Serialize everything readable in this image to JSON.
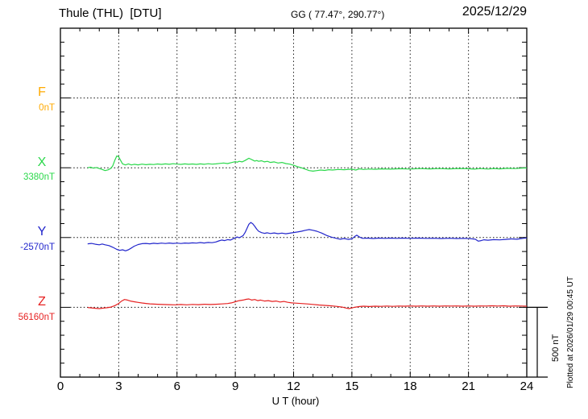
{
  "header": {
    "title": "Thule (THL)  [DTU]",
    "station_coords": "GG ( 77.47°, 290.77°)",
    "date": "2025/12/29"
  },
  "x_axis": {
    "label": "U T (hour)",
    "tick_labels": [
      "0",
      "3",
      "6",
      "9",
      "12",
      "15",
      "18",
      "21",
      "24"
    ]
  },
  "scale_bar": {
    "label": "500 nT",
    "nT": 500
  },
  "watermark": "Plotted at 2026/01/29 00:45 UT",
  "channels": [
    {
      "id": "F",
      "name": "F",
      "value": "0nT",
      "color": "#FFAA00"
    },
    {
      "id": "X",
      "name": "X",
      "value": "3380nT",
      "color": "#2BD84B"
    },
    {
      "id": "Y",
      "name": "Y",
      "value": "-2570nT",
      "color": "#2226CC"
    },
    {
      "id": "Z",
      "name": "Z",
      "value": "56160nT",
      "color": "#E62222"
    }
  ],
  "chart_data": {
    "type": "line",
    "title": "Thule (THL) [DTU] magnetogram 2025/12/29",
    "xlabel": "U T (hour)",
    "xlim": [
      0,
      24
    ],
    "x_tick_step_hours": 1,
    "x_grid_hours": [
      3,
      6,
      9,
      12,
      15,
      18,
      21
    ],
    "grid": "dotted",
    "scale_nT_per_5_divisions": 500,
    "series": [
      {
        "name": "F",
        "baseline_value": "0nT",
        "color": "#FFAA00",
        "points": []
      },
      {
        "name": "X",
        "baseline_value": "3380nT",
        "color": "#2BD84B",
        "points": [
          [
            1.4,
            0
          ],
          [
            1.55,
            4
          ],
          [
            1.7,
            -3
          ],
          [
            1.85,
            2
          ],
          [
            2.0,
            -6
          ],
          [
            2.15,
            -12
          ],
          [
            2.3,
            -20
          ],
          [
            2.45,
            -15
          ],
          [
            2.6,
            -4
          ],
          [
            2.7,
            15
          ],
          [
            2.8,
            55
          ],
          [
            2.9,
            85
          ],
          [
            3.0,
            78
          ],
          [
            3.1,
            52
          ],
          [
            3.2,
            28
          ],
          [
            3.35,
            20
          ],
          [
            3.5,
            28
          ],
          [
            3.65,
            20
          ],
          [
            3.8,
            25
          ],
          [
            4.0,
            21
          ],
          [
            4.2,
            26
          ],
          [
            4.4,
            22
          ],
          [
            4.6,
            25
          ],
          [
            4.8,
            23
          ],
          [
            5.0,
            27
          ],
          [
            5.2,
            24
          ],
          [
            5.4,
            28
          ],
          [
            5.6,
            25
          ],
          [
            5.8,
            29
          ],
          [
            6.0,
            26
          ],
          [
            6.2,
            24
          ],
          [
            6.4,
            28
          ],
          [
            6.6,
            25
          ],
          [
            6.8,
            27
          ],
          [
            7.0,
            24
          ],
          [
            7.2,
            28
          ],
          [
            7.4,
            25
          ],
          [
            7.6,
            29
          ],
          [
            7.8,
            26
          ],
          [
            8.0,
            28
          ],
          [
            8.2,
            31
          ],
          [
            8.4,
            34
          ],
          [
            8.6,
            30
          ],
          [
            8.8,
            37
          ],
          [
            9.0,
            44
          ],
          [
            9.1,
            40
          ],
          [
            9.2,
            46
          ],
          [
            9.35,
            42
          ],
          [
            9.5,
            52
          ],
          [
            9.6,
            60
          ],
          [
            9.7,
            68
          ],
          [
            9.8,
            62
          ],
          [
            9.9,
            55
          ],
          [
            10.0,
            48
          ],
          [
            10.1,
            52
          ],
          [
            10.2,
            46
          ],
          [
            10.35,
            50
          ],
          [
            10.5,
            42
          ],
          [
            10.65,
            46
          ],
          [
            10.8,
            38
          ],
          [
            11.0,
            42
          ],
          [
            11.2,
            34
          ],
          [
            11.4,
            38
          ],
          [
            11.6,
            30
          ],
          [
            11.8,
            26
          ],
          [
            12.0,
            18
          ],
          [
            12.2,
            8
          ],
          [
            12.4,
            0
          ],
          [
            12.6,
            -10
          ],
          [
            12.8,
            -20
          ],
          [
            13.0,
            -24
          ],
          [
            13.2,
            -20
          ],
          [
            13.4,
            -16
          ],
          [
            13.6,
            -19
          ],
          [
            13.8,
            -14
          ],
          [
            14.0,
            -16
          ],
          [
            14.3,
            -12
          ],
          [
            14.6,
            -14
          ],
          [
            15.0,
            -10
          ],
          [
            15.2,
            -16
          ],
          [
            15.4,
            -8
          ],
          [
            15.6,
            -12
          ],
          [
            15.9,
            -9
          ],
          [
            16.2,
            -11
          ],
          [
            16.5,
            -8
          ],
          [
            17.0,
            -10
          ],
          [
            17.5,
            -7
          ],
          [
            18.0,
            -9
          ],
          [
            18.5,
            -6
          ],
          [
            19.0,
            -8
          ],
          [
            19.5,
            -6
          ],
          [
            20.0,
            -8
          ],
          [
            20.5,
            -5
          ],
          [
            21.0,
            -7
          ],
          [
            21.3,
            -10
          ],
          [
            21.6,
            -6
          ],
          [
            22.0,
            -9
          ],
          [
            22.3,
            -5
          ],
          [
            22.6,
            -8
          ],
          [
            23.0,
            -4
          ],
          [
            23.4,
            -6
          ],
          [
            23.7,
            -3
          ],
          [
            24.0,
            -1
          ]
        ]
      },
      {
        "name": "Y",
        "baseline_value": "-2570nT",
        "color": "#2226CC",
        "points": [
          [
            1.4,
            -45
          ],
          [
            1.6,
            -42
          ],
          [
            1.8,
            -48
          ],
          [
            2.0,
            -52
          ],
          [
            2.15,
            -46
          ],
          [
            2.3,
            -52
          ],
          [
            2.5,
            -58
          ],
          [
            2.7,
            -70
          ],
          [
            2.9,
            -85
          ],
          [
            3.05,
            -92
          ],
          [
            3.2,
            -88
          ],
          [
            3.35,
            -95
          ],
          [
            3.5,
            -88
          ],
          [
            3.65,
            -75
          ],
          [
            3.8,
            -62
          ],
          [
            4.0,
            -50
          ],
          [
            4.2,
            -44
          ],
          [
            4.4,
            -42
          ],
          [
            4.6,
            -45
          ],
          [
            4.8,
            -41
          ],
          [
            5.0,
            -44
          ],
          [
            5.2,
            -40
          ],
          [
            5.4,
            -43
          ],
          [
            5.6,
            -39
          ],
          [
            5.8,
            -42
          ],
          [
            6.0,
            -40
          ],
          [
            6.2,
            -43
          ],
          [
            6.4,
            -39
          ],
          [
            6.6,
            -41
          ],
          [
            6.8,
            -38
          ],
          [
            7.0,
            -40
          ],
          [
            7.2,
            -36
          ],
          [
            7.4,
            -39
          ],
          [
            7.6,
            -35
          ],
          [
            7.8,
            -37
          ],
          [
            8.0,
            -32
          ],
          [
            8.15,
            -24
          ],
          [
            8.3,
            -18
          ],
          [
            8.45,
            -22
          ],
          [
            8.6,
            -15
          ],
          [
            8.75,
            -18
          ],
          [
            8.9,
            -8
          ],
          [
            9.0,
            -2
          ],
          [
            9.1,
            4
          ],
          [
            9.2,
            -2
          ],
          [
            9.3,
            6
          ],
          [
            9.4,
            14
          ],
          [
            9.5,
            35
          ],
          [
            9.6,
            65
          ],
          [
            9.7,
            95
          ],
          [
            9.8,
            108
          ],
          [
            9.9,
            98
          ],
          [
            10.0,
            80
          ],
          [
            10.1,
            60
          ],
          [
            10.2,
            45
          ],
          [
            10.35,
            35
          ],
          [
            10.5,
            30
          ],
          [
            10.65,
            34
          ],
          [
            10.8,
            29
          ],
          [
            11.0,
            33
          ],
          [
            11.2,
            28
          ],
          [
            11.4,
            32
          ],
          [
            11.6,
            27
          ],
          [
            11.8,
            31
          ],
          [
            12.0,
            36
          ],
          [
            12.2,
            40
          ],
          [
            12.4,
            45
          ],
          [
            12.6,
            52
          ],
          [
            12.8,
            57
          ],
          [
            13.0,
            52
          ],
          [
            13.2,
            45
          ],
          [
            13.45,
            32
          ],
          [
            13.7,
            15
          ],
          [
            13.95,
            3
          ],
          [
            14.2,
            -6
          ],
          [
            14.4,
            -12
          ],
          [
            14.6,
            -7
          ],
          [
            14.8,
            -13
          ],
          [
            15.0,
            -9
          ],
          [
            15.15,
            8
          ],
          [
            15.25,
            17
          ],
          [
            15.4,
            3
          ],
          [
            15.55,
            -6
          ],
          [
            15.8,
            -4
          ],
          [
            16.1,
            -7
          ],
          [
            16.4,
            -4
          ],
          [
            16.7,
            -6
          ],
          [
            17.0,
            -4
          ],
          [
            17.3,
            -6
          ],
          [
            17.6,
            -4
          ],
          [
            18.0,
            -6
          ],
          [
            18.4,
            -4
          ],
          [
            18.8,
            -6
          ],
          [
            19.2,
            -5
          ],
          [
            19.6,
            -7
          ],
          [
            20.0,
            -5
          ],
          [
            20.4,
            -7
          ],
          [
            20.8,
            -6
          ],
          [
            21.1,
            -8
          ],
          [
            21.35,
            -12
          ],
          [
            21.5,
            -26
          ],
          [
            21.65,
            -22
          ],
          [
            21.8,
            -16
          ],
          [
            22.0,
            -19
          ],
          [
            22.3,
            -15
          ],
          [
            22.6,
            -17
          ],
          [
            22.9,
            -13
          ],
          [
            23.2,
            -10
          ],
          [
            23.5,
            -12
          ],
          [
            23.8,
            -6
          ],
          [
            24.0,
            -3
          ]
        ]
      },
      {
        "name": "Z",
        "baseline_value": "56160nT",
        "color": "#E62222",
        "points": [
          [
            1.4,
            -1
          ],
          [
            1.6,
            -4
          ],
          [
            1.8,
            -7
          ],
          [
            2.0,
            -9
          ],
          [
            2.2,
            -6
          ],
          [
            2.4,
            -3
          ],
          [
            2.6,
            2
          ],
          [
            2.8,
            12
          ],
          [
            3.0,
            28
          ],
          [
            3.15,
            45
          ],
          [
            3.3,
            56
          ],
          [
            3.45,
            52
          ],
          [
            3.6,
            45
          ],
          [
            3.8,
            40
          ],
          [
            4.0,
            35
          ],
          [
            4.2,
            31
          ],
          [
            4.4,
            28
          ],
          [
            4.6,
            25
          ],
          [
            4.8,
            23
          ],
          [
            5.0,
            22
          ],
          [
            5.3,
            20
          ],
          [
            5.6,
            19
          ],
          [
            5.9,
            18
          ],
          [
            6.2,
            20
          ],
          [
            6.5,
            18
          ],
          [
            6.8,
            21
          ],
          [
            7.1,
            19
          ],
          [
            7.4,
            22
          ],
          [
            7.7,
            20
          ],
          [
            8.0,
            22
          ],
          [
            8.3,
            24
          ],
          [
            8.6,
            27
          ],
          [
            8.8,
            32
          ],
          [
            9.0,
            40
          ],
          [
            9.2,
            48
          ],
          [
            9.4,
            52
          ],
          [
            9.55,
            57
          ],
          [
            9.7,
            60
          ],
          [
            9.85,
            52
          ],
          [
            10.0,
            56
          ],
          [
            10.15,
            48
          ],
          [
            10.3,
            52
          ],
          [
            10.5,
            45
          ],
          [
            10.7,
            48
          ],
          [
            10.9,
            42
          ],
          [
            11.1,
            45
          ],
          [
            11.3,
            38
          ],
          [
            11.5,
            42
          ],
          [
            11.7,
            36
          ],
          [
            11.9,
            32
          ],
          [
            12.1,
            30
          ],
          [
            12.4,
            27
          ],
          [
            12.7,
            24
          ],
          [
            13.0,
            21
          ],
          [
            13.3,
            17
          ],
          [
            13.6,
            14
          ],
          [
            13.9,
            11
          ],
          [
            14.2,
            7
          ],
          [
            14.5,
            2
          ],
          [
            14.7,
            -5
          ],
          [
            14.85,
            -9
          ],
          [
            15.0,
            -4
          ],
          [
            15.2,
            2
          ],
          [
            15.4,
            6
          ],
          [
            15.6,
            8
          ],
          [
            15.9,
            6
          ],
          [
            16.2,
            8
          ],
          [
            16.5,
            7
          ],
          [
            16.8,
            9
          ],
          [
            17.1,
            7
          ],
          [
            17.4,
            9
          ],
          [
            17.7,
            8
          ],
          [
            18.0,
            10
          ],
          [
            18.3,
            8
          ],
          [
            18.6,
            10
          ],
          [
            18.9,
            8
          ],
          [
            19.2,
            10
          ],
          [
            19.5,
            8
          ],
          [
            19.8,
            10
          ],
          [
            20.1,
            9
          ],
          [
            20.4,
            10
          ],
          [
            20.7,
            8
          ],
          [
            21.0,
            10
          ],
          [
            21.3,
            8
          ],
          [
            21.6,
            10
          ],
          [
            21.9,
            9
          ],
          [
            22.2,
            11
          ],
          [
            22.5,
            9
          ],
          [
            22.8,
            11
          ],
          [
            23.1,
            8
          ],
          [
            23.4,
            10
          ],
          [
            23.7,
            9
          ],
          [
            24.0,
            8
          ]
        ]
      }
    ]
  }
}
